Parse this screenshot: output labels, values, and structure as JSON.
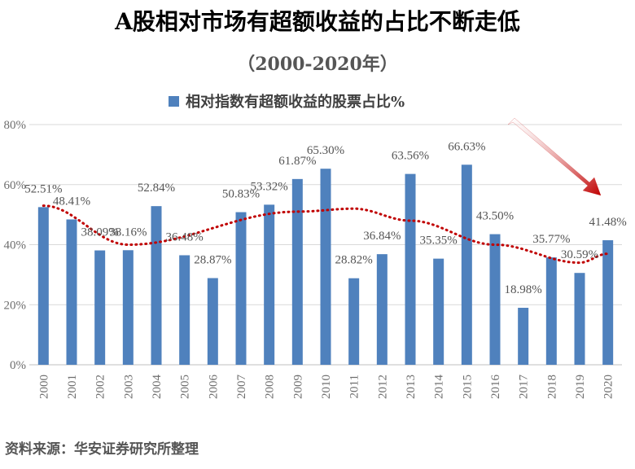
{
  "chart_data": {
    "type": "bar",
    "title": "A股相对市场有超额收益的占比不断走低",
    "subtitle": "（2000-2020年）",
    "categories": [
      "2000",
      "2001",
      "2002",
      "2003",
      "2004",
      "2005",
      "2006",
      "2007",
      "2008",
      "2009",
      "2010",
      "2011",
      "2012",
      "2013",
      "2014",
      "2015",
      "2016",
      "2017",
      "2018",
      "2019",
      "2020"
    ],
    "series": [
      {
        "name": "相对指数有超额收益的股票占比%",
        "values": [
          52.51,
          48.41,
          38.09,
          38.16,
          52.84,
          36.48,
          28.87,
          50.83,
          53.32,
          61.87,
          65.3,
          28.82,
          36.84,
          63.56,
          35.35,
          66.63,
          43.5,
          18.98,
          35.77,
          30.59,
          41.48
        ],
        "labels": [
          "52.51%",
          "48.41%",
          "38.09%",
          "38.16%",
          "52.84%",
          "36.48%",
          "28.87%",
          "50.83%",
          "53.32%",
          "61.87%",
          "65.30%",
          "28.82%",
          "36.84%",
          "63.56%",
          "35.35%",
          "66.63%",
          "43.50%",
          "18.98%",
          "35.77%",
          "30.59%",
          "41.48%"
        ],
        "color": "#4f81bd"
      }
    ],
    "ylim": [
      0,
      80
    ],
    "yticks": [
      0,
      20,
      40,
      60,
      80
    ],
    "ytick_labels": [
      "0%",
      "20%",
      "40%",
      "60%",
      "80%"
    ],
    "grid": true,
    "legend": "top-center",
    "trend_color": "#c00000",
    "arrow_color": "#c00000"
  },
  "source": "资料来源：华安证券研究所整理"
}
